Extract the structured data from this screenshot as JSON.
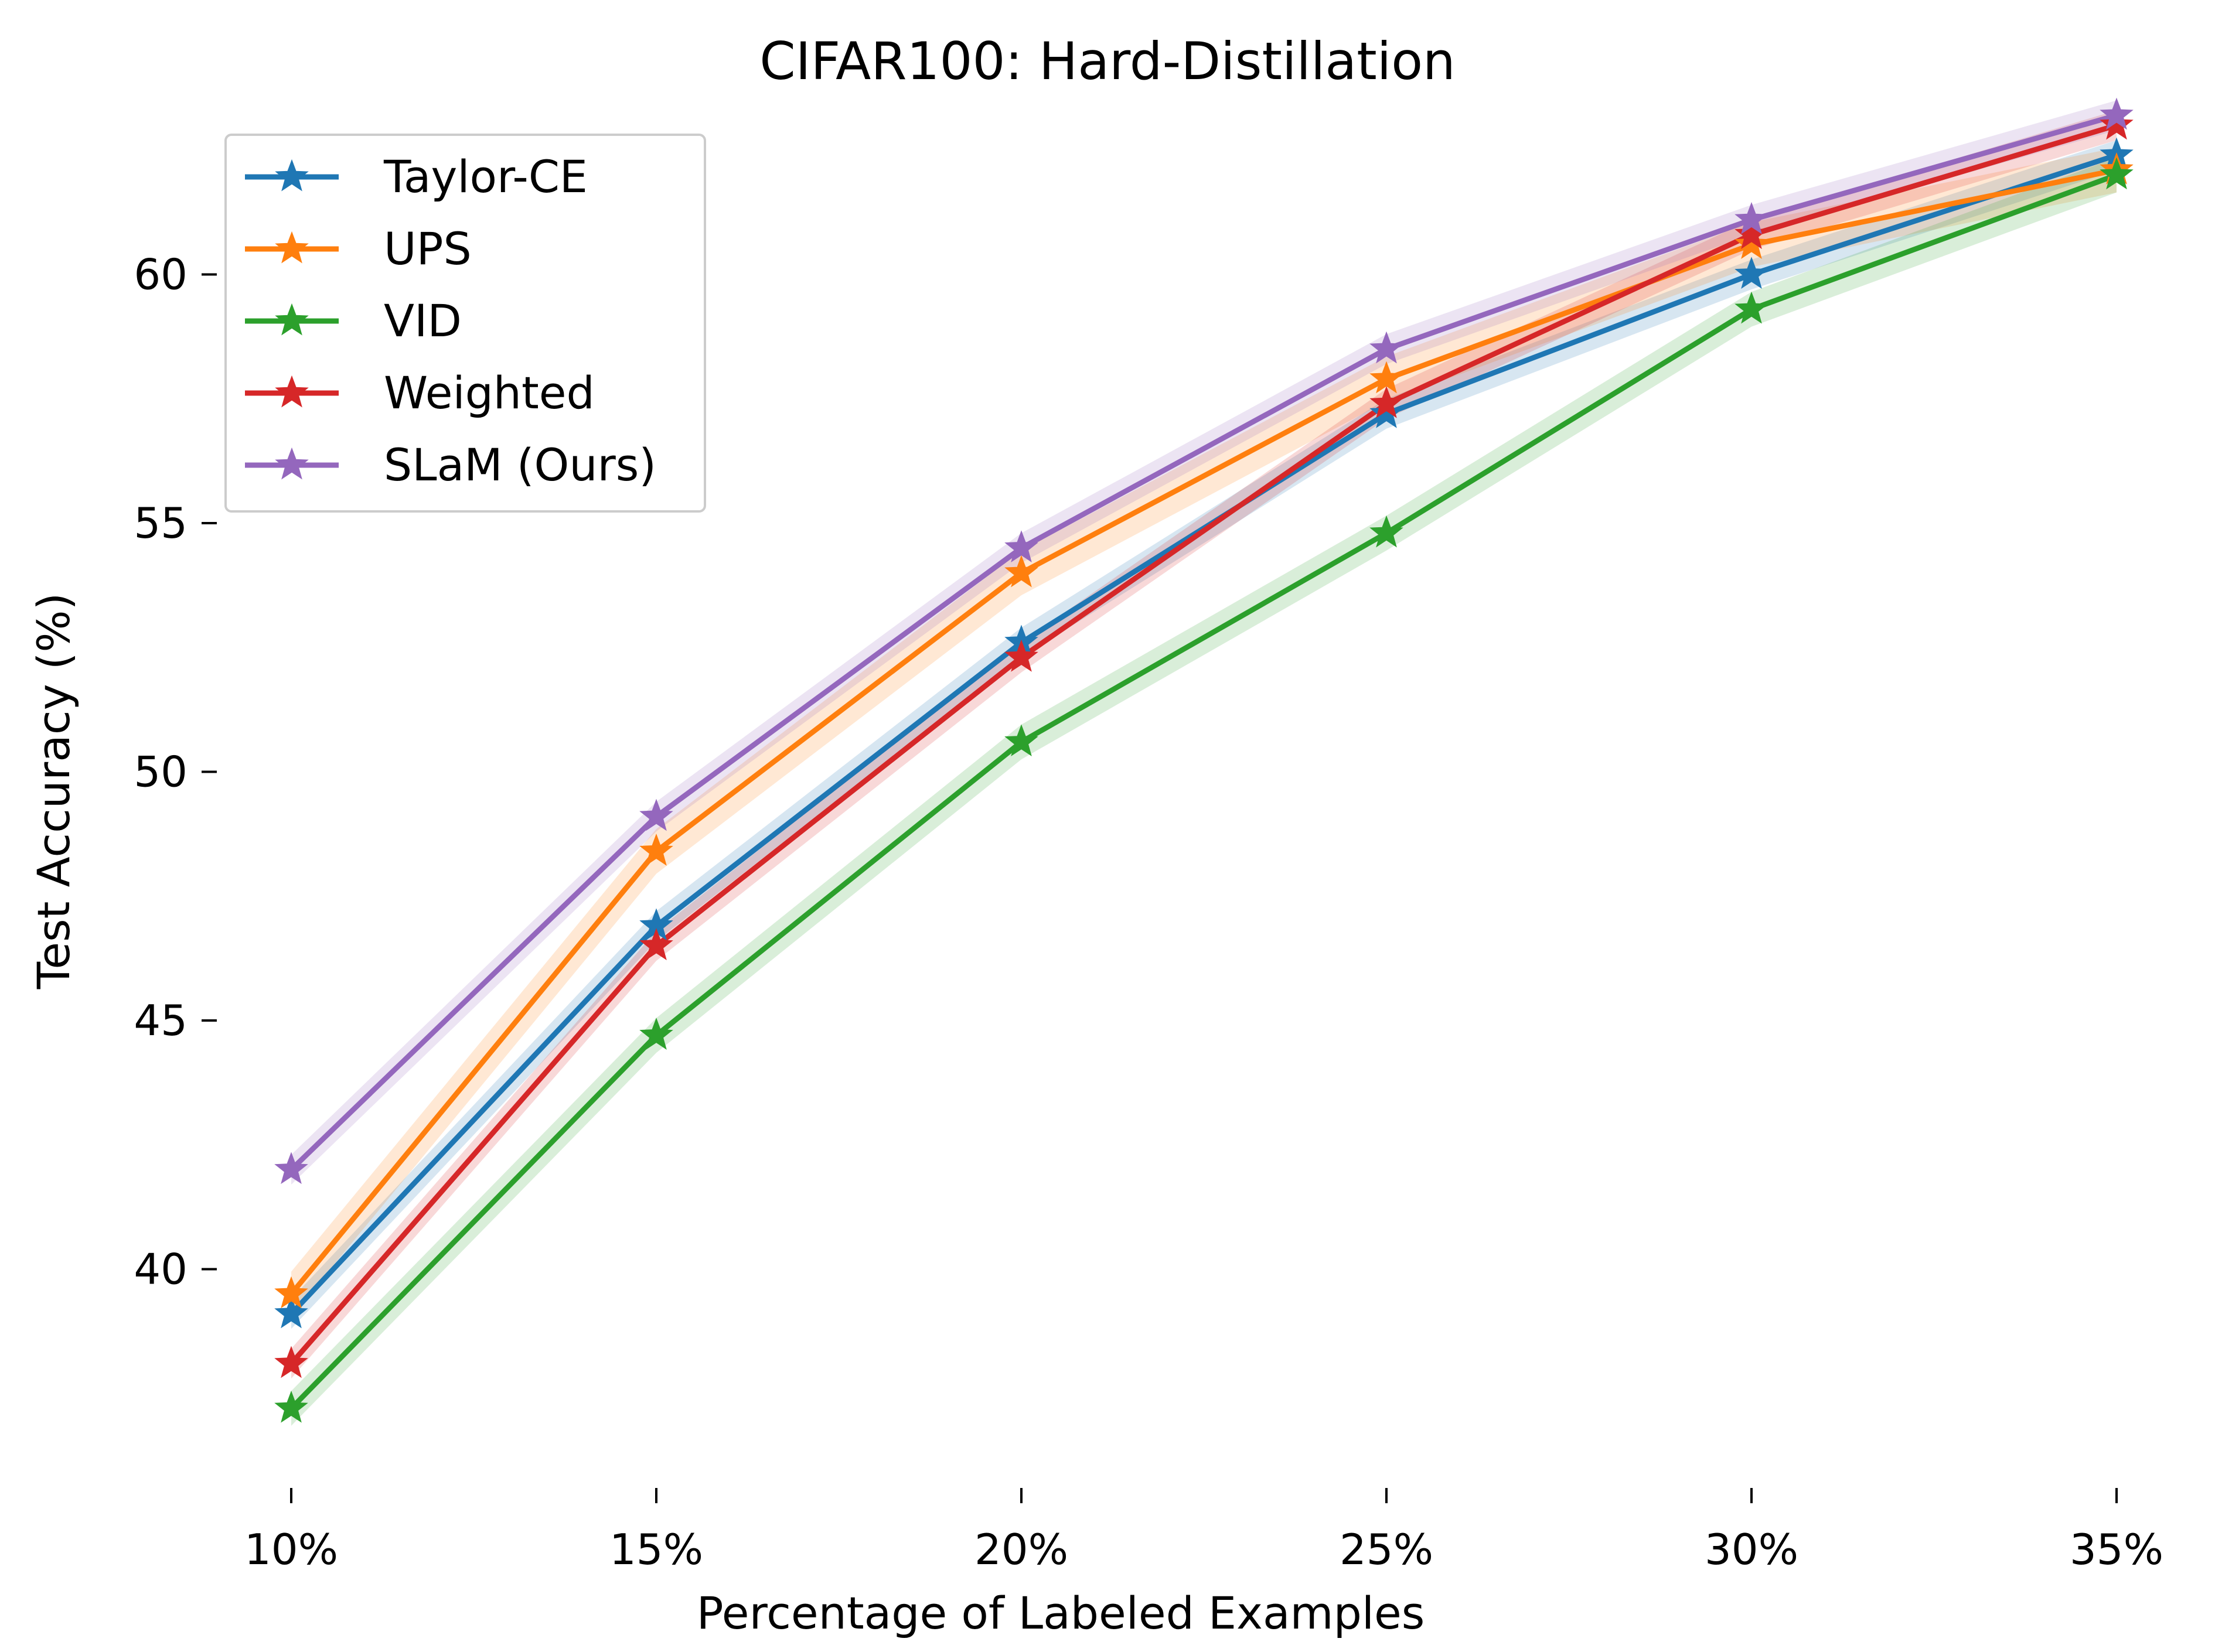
{
  "chart_data": {
    "type": "line",
    "title": "CIFAR100: Hard-Distillation",
    "xlabel": "Percentage of Labeled Examples",
    "ylabel": "Test Accuracy (%)",
    "categories": [
      "10%",
      "15%",
      "20%",
      "25%",
      "30%",
      "35%"
    ],
    "y_ticks": [
      40,
      45,
      50,
      55,
      60
    ],
    "ylim": [
      35.6,
      64.4
    ],
    "grid": false,
    "legend_position": "top-left",
    "marker": "star",
    "series": [
      {
        "name": "Taylor-CE",
        "color": "#1f77b4",
        "values": [
          39.1,
          46.9,
          52.6,
          57.2,
          60.0,
          62.4
        ],
        "band": 0.3
      },
      {
        "name": "UPS",
        "color": "#ff7f0e",
        "values": [
          39.5,
          48.4,
          54.0,
          57.9,
          60.6,
          62.1
        ],
        "band": 0.45
      },
      {
        "name": "VID",
        "color": "#2ca02c",
        "values": [
          37.2,
          44.7,
          50.6,
          54.8,
          59.3,
          62.0
        ],
        "band": 0.35
      },
      {
        "name": "Weighted",
        "color": "#d62728",
        "values": [
          38.1,
          46.5,
          52.3,
          57.4,
          60.8,
          63.0
        ],
        "band": 0.3
      },
      {
        "name": "SLaM (Ours)",
        "color": "#9467bd",
        "values": [
          42.0,
          49.1,
          54.5,
          58.5,
          61.1,
          63.2
        ],
        "band": 0.3
      }
    ]
  }
}
